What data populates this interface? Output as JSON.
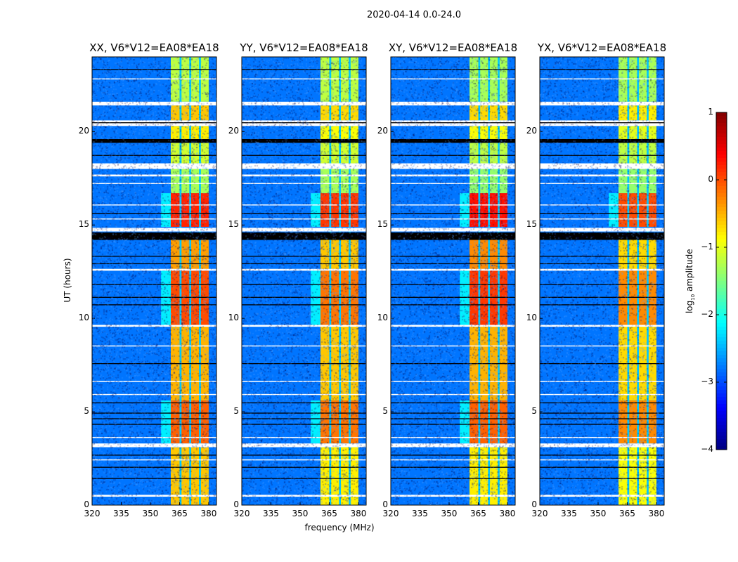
{
  "chart_data": {
    "type": "heatmap",
    "title": "2020-04-14 0.0-24.0",
    "xlabel": "frequency (MHz)",
    "ylabel": "UT (hours)",
    "xlim": [
      320,
      384
    ],
    "ylim": [
      0,
      24
    ],
    "xticks": [
      320,
      335,
      350,
      365,
      380
    ],
    "xtick_labels": [
      "320",
      "335",
      "350",
      "365",
      "380"
    ],
    "yticks": [
      0,
      5,
      10,
      15,
      20
    ],
    "ytick_labels": [
      "0",
      "5",
      "10",
      "15",
      "20"
    ],
    "background_level": -2.8,
    "rfi_band_mhz": [
      360.5,
      380
    ],
    "subband_edges_mhz": [
      365.5,
      370.5,
      375.5
    ],
    "time_segments_hours": [
      [
        21.6,
        24
      ],
      [
        20.6,
        21.4
      ],
      [
        19.6,
        20.3
      ],
      [
        18.3,
        19.4
      ],
      [
        16.7,
        18.0
      ],
      [
        14.9,
        16.7
      ],
      [
        12.6,
        14.2
      ],
      [
        9.6,
        12.6
      ],
      [
        5.6,
        9.6
      ],
      [
        3.3,
        5.6
      ],
      [
        0,
        3.1
      ]
    ],
    "panels": [
      {
        "title": "XX, V6*V12=EA08*EA18",
        "band_levels": [
          -1.2,
          -0.6,
          -0.8,
          -1.1,
          -1.3,
          0.2,
          -0.4,
          0.0,
          -0.5,
          -0.1,
          -0.6
        ]
      },
      {
        "title": "YY, V6*V12=EA08*EA18",
        "band_levels": [
          -1.2,
          -0.7,
          -0.9,
          -1.1,
          -1.3,
          0.1,
          -0.6,
          -0.2,
          -0.6,
          -0.2,
          -0.8
        ]
      },
      {
        "title": "XY, V6*V12=EA08*EA18",
        "band_levels": [
          -1.3,
          -0.7,
          -0.9,
          -1.2,
          -1.4,
          0.3,
          -0.3,
          0.1,
          -0.5,
          -0.1,
          -0.8
        ]
      },
      {
        "title": "YX, V6*V12=EA08*EA18",
        "band_levels": [
          -1.3,
          -0.8,
          -1.0,
          -1.2,
          -1.4,
          0.0,
          -0.7,
          -0.3,
          -0.7,
          -0.3,
          -0.9
        ]
      }
    ],
    "flagged_hours": [
      [
        21.4,
        21.6
      ],
      [
        20.3,
        20.6
      ],
      [
        18.0,
        18.3
      ],
      [
        14.65,
        14.85
      ],
      [
        3.1,
        3.3
      ],
      [
        0.45,
        0.55
      ],
      [
        9.55,
        9.65
      ],
      [
        17.6,
        17.7
      ],
      [
        12.55,
        12.65
      ],
      [
        8.5,
        8.55
      ],
      [
        6.6,
        6.65
      ],
      [
        16.05,
        16.1
      ],
      [
        15.3,
        15.35
      ],
      [
        17.2,
        17.25
      ],
      [
        22.8,
        22.85
      ],
      [
        3.6,
        3.65
      ],
      [
        2.4,
        2.45
      ],
      [
        5.9,
        5.95
      ]
    ],
    "dark_rows_hours": [
      [
        19.4,
        19.6
      ],
      [
        14.2,
        14.6
      ],
      [
        23.3,
        23.35
      ],
      [
        15.6,
        15.65
      ],
      [
        11.8,
        11.85
      ],
      [
        11.1,
        11.15
      ],
      [
        10.7,
        10.75
      ],
      [
        5.45,
        5.5
      ],
      [
        4.9,
        4.95
      ],
      [
        4.6,
        4.65
      ],
      [
        4.3,
        4.35
      ],
      [
        2.65,
        2.7
      ],
      [
        2.0,
        2.05
      ],
      [
        1.4,
        1.45
      ],
      [
        20.45,
        20.5
      ],
      [
        18.7,
        18.75
      ],
      [
        13.3,
        13.35
      ],
      [
        12.9,
        12.95
      ],
      [
        7.55,
        7.6
      ]
    ],
    "colorbar": {
      "label_prefix": "log",
      "label_sub": "10",
      "label_suffix": " amplitude",
      "range": [
        -4,
        1
      ],
      "ticks": [
        1,
        0,
        -1,
        -2,
        -3,
        -4
      ],
      "tick_labels": [
        "1",
        "0",
        "−1",
        "−2",
        "−3",
        "−4"
      ],
      "colormap": "jet"
    }
  }
}
